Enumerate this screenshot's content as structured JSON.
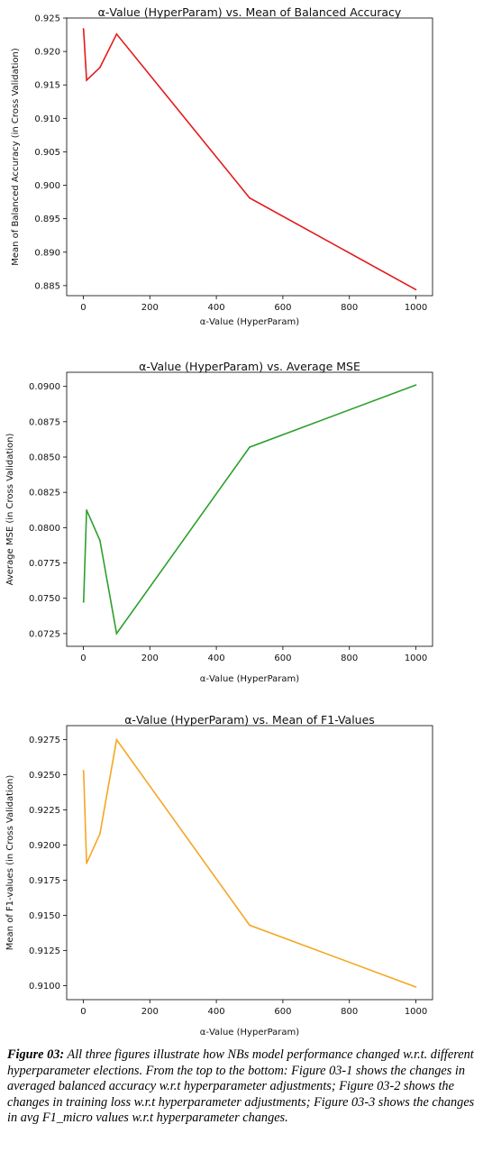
{
  "chart_data": [
    {
      "type": "line",
      "title": "α-Value (HyperParam) vs. Mean of Balanced Accuracy",
      "xlabel": "α-Value (HyperParam)",
      "ylabel": "Mean of Balanced Accuracy (in Cross Validation)",
      "color": "#e31a1c",
      "x": [
        0.1,
        1,
        10,
        50,
        100,
        500,
        1000
      ],
      "y": [
        0.9234,
        0.9232,
        0.9157,
        0.9176,
        0.9226,
        0.8981,
        0.8844
      ],
      "xlim": [
        -50,
        1050
      ],
      "ylim": [
        0.8835,
        0.925
      ],
      "xticks": [
        0,
        200,
        400,
        600,
        800,
        1000
      ],
      "yticks": [
        0.885,
        0.89,
        0.895,
        0.9,
        0.905,
        0.91,
        0.915,
        0.92,
        0.925
      ],
      "ytick_labels": [
        "0.885",
        "0.890",
        "0.895",
        "0.900",
        "0.905",
        "0.910",
        "0.915",
        "0.920",
        "0.925"
      ],
      "grid": false
    },
    {
      "type": "line",
      "title": "α-Value (HyperParam) vs. Average MSE",
      "xlabel": "α-Value (HyperParam)",
      "ylabel": "Average MSE (in Cross Validation)",
      "color": "#2ca02c",
      "x": [
        0.1,
        1,
        10,
        50,
        100,
        500,
        1000
      ],
      "y": [
        0.07475,
        0.07475,
        0.08125,
        0.0791,
        0.0725,
        0.0857,
        0.0901
      ],
      "xlim": [
        -50,
        1050
      ],
      "ylim": [
        0.0716,
        0.091
      ],
      "xticks": [
        0,
        200,
        400,
        600,
        800,
        1000
      ],
      "yticks": [
        0.0725,
        0.075,
        0.0775,
        0.08,
        0.0825,
        0.085,
        0.0875,
        0.09
      ],
      "ytick_labels": [
        "0.0725",
        "0.0750",
        "0.0775",
        "0.0800",
        "0.0825",
        "0.0850",
        "0.0875",
        "0.0900"
      ],
      "grid": false
    },
    {
      "type": "line",
      "title": "α-Value (HyperParam) vs. Mean of F1-Values",
      "xlabel": "α-Value (HyperParam)",
      "ylabel": "Mean of F1-values (in Cross Validation)",
      "color": "#f5a623",
      "x": [
        0.1,
        1,
        10,
        50,
        100,
        500,
        1000
      ],
      "y": [
        0.9253,
        0.9252,
        0.9187,
        0.9208,
        0.9275,
        0.9143,
        0.9099
      ],
      "xlim": [
        -50,
        1050
      ],
      "ylim": [
        0.909,
        0.9285
      ],
      "xticks": [
        0,
        200,
        400,
        600,
        800,
        1000
      ],
      "yticks": [
        0.91,
        0.9125,
        0.915,
        0.9175,
        0.92,
        0.9225,
        0.925,
        0.9275
      ],
      "ytick_labels": [
        "0.9100",
        "0.9125",
        "0.9150",
        "0.9175",
        "0.9200",
        "0.9225",
        "0.9250",
        "0.9275"
      ],
      "grid": false
    }
  ],
  "caption": {
    "label": "Figure 03:",
    "text": " All three figures illustrate how NBs model performance changed w.r.t. different hyperparameter elections. From the top to the bottom: Figure 03-1 shows the changes in averaged balanced accuracy w.r.t hyperparameter adjustments; Figure 03-2 shows the changes in training loss w.r.t hyperparameter adjustments; Figure 03-3 shows the changes in avg F1_micro values w.r.t hyperparameter changes."
  }
}
